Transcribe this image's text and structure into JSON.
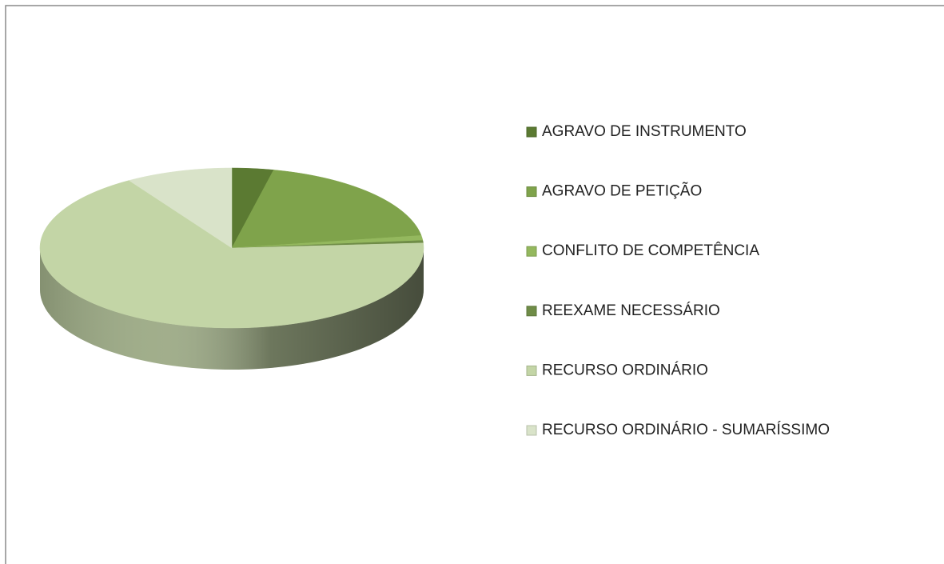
{
  "chart_data": {
    "type": "pie3d",
    "categories": [
      "AGRAVO DE INSTRUMENTO",
      "AGRAVO DE PETIÇÃO",
      "CONFLITO DE COMPETÊNCIA",
      "REEXAME NECESSÁRIO",
      "RECURSO ORDINÁRIO",
      "RECURSO ORDINÁRIO - SUMARÍSSIMO"
    ],
    "values": [
      3.5,
      19,
      1,
      0.5,
      67,
      9
    ],
    "colors": [
      "#5b7a32",
      "#7fa34b",
      "#94b85e",
      "#6f8c47",
      "#c3d5a6",
      "#d9e3c9"
    ],
    "legend": "right"
  }
}
